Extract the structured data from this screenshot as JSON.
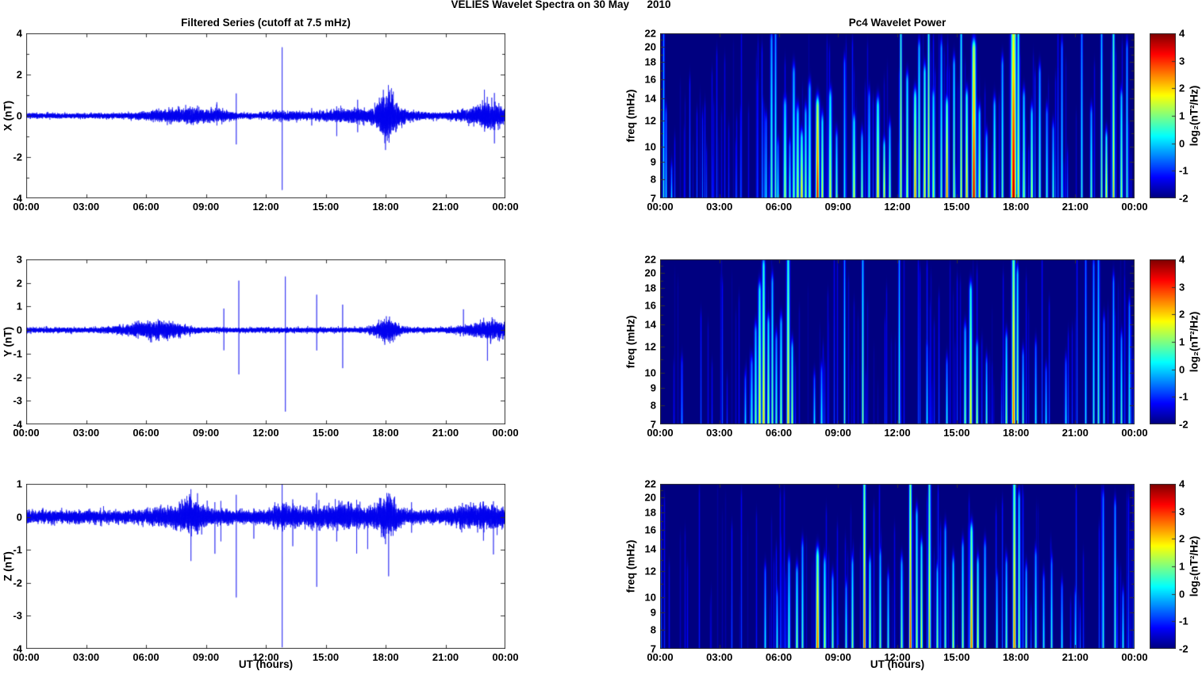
{
  "chart_data": {
    "type": "line+heatmap",
    "figure_title": "VELIES Wavelet Spectra on 30 May      2010",
    "left_title": "Filtered Series (cutoff at 7.5 mHz)",
    "right_title": "Pc4 Wavelet Power",
    "time_axis": {
      "label": "UT (hours)",
      "tick_hours": [
        0,
        3,
        6,
        9,
        12,
        15,
        18,
        21,
        24
      ],
      "tick_labels": [
        "00:00",
        "03:00",
        "06:00",
        "09:00",
        "12:00",
        "15:00",
        "18:00",
        "21:00",
        "00:00"
      ]
    },
    "series_color": "#0000ee",
    "axis_color": "#333333",
    "left_panels": [
      {
        "ylabel": "X (nT)",
        "ylim": [
          -4,
          4
        ],
        "ytick_values": [
          4,
          2,
          0,
          -2,
          -4
        ],
        "ytick_minor": [
          3,
          1,
          -1,
          -3
        ],
        "sigma": 0.055,
        "seed": 11,
        "bursts": [
          [
            7.5,
            1.3,
            1.6
          ],
          [
            8.3,
            0.4,
            1.2
          ],
          [
            9.7,
            0.5,
            1.2
          ],
          [
            13.0,
            0.8,
            0.8
          ],
          [
            15.6,
            1.0,
            1.0
          ],
          [
            16.6,
            0.7,
            1.4
          ],
          [
            18.08,
            0.38,
            7.5
          ],
          [
            18.9,
            0.8,
            1.2
          ],
          [
            22.7,
            0.9,
            2.0
          ],
          [
            23.35,
            0.45,
            3.0
          ]
        ],
        "spikes": [
          [
            9.55,
            0.55,
            0.5
          ],
          [
            10.52,
            1.15,
            1.3
          ],
          [
            12.82,
            3.4,
            3.55
          ],
          [
            14.3,
            0.5,
            0.45
          ],
          [
            15.55,
            0.45,
            1.0
          ],
          [
            16.6,
            0.7,
            0.8
          ],
          [
            22.55,
            0.6,
            0.55
          ],
          [
            22.95,
            1.45,
            0.4
          ],
          [
            23.45,
            1.3,
            1.25
          ]
        ]
      },
      {
        "ylabel": "Y (nT)",
        "ylim": [
          -4,
          3
        ],
        "ytick_values": [
          3,
          2,
          1,
          0,
          -1,
          -2,
          -3,
          -4
        ],
        "ytick_minor": [],
        "sigma": 0.05,
        "seed": 22,
        "bursts": [
          [
            5.8,
            0.9,
            1.6
          ],
          [
            7.0,
            0.7,
            1.8
          ],
          [
            18.05,
            0.4,
            3.5
          ],
          [
            22.8,
            0.8,
            1.5
          ],
          [
            23.5,
            0.4,
            2.0
          ]
        ],
        "spikes": [
          [
            9.9,
            0.85,
            0.85
          ],
          [
            10.65,
            2.1,
            1.85
          ],
          [
            12.98,
            2.25,
            3.5
          ],
          [
            14.55,
            1.5,
            0.9
          ],
          [
            15.85,
            1.05,
            1.6
          ],
          [
            21.9,
            0.9,
            0.35
          ],
          [
            23.1,
            0.4,
            1.3
          ]
        ]
      },
      {
        "ylabel": "Z (nT)",
        "ylim": [
          -4,
          1
        ],
        "ytick_values": [
          1,
          0,
          -1,
          -2,
          -3,
          -4
        ],
        "ytick_minor": [],
        "sigma": 0.085,
        "seed": 33,
        "bursts": [
          [
            7.9,
            1.1,
            0.8
          ],
          [
            8.3,
            0.4,
            1.0
          ],
          [
            12.9,
            0.5,
            0.9
          ],
          [
            14.6,
            0.8,
            0.7
          ],
          [
            16.3,
            0.7,
            0.9
          ],
          [
            18.1,
            0.4,
            2.2
          ],
          [
            21.9,
            0.6,
            0.7
          ],
          [
            23.2,
            0.6,
            1.0
          ]
        ],
        "spikes": [
          [
            8.25,
            0.5,
            0.95
          ],
          [
            9.45,
            0.35,
            0.8
          ],
          [
            9.75,
            0.4,
            0.75
          ],
          [
            10.52,
            0.75,
            2.4
          ],
          [
            11.4,
            0.3,
            0.7
          ],
          [
            12.82,
            0.8,
            3.8
          ],
          [
            13.35,
            0.4,
            0.8
          ],
          [
            14.55,
            0.45,
            1.85
          ],
          [
            15.55,
            0.3,
            0.9
          ],
          [
            16.55,
            0.4,
            1.15
          ],
          [
            17.1,
            0.3,
            0.9
          ],
          [
            18.15,
            0.9,
            1.6
          ],
          [
            19.3,
            0.3,
            0.65
          ],
          [
            22.9,
            0.65,
            0.7
          ],
          [
            23.4,
            0.4,
            0.8
          ]
        ]
      }
    ],
    "freq_axis": {
      "label": "freq (mHz)",
      "lim": [
        7,
        22
      ],
      "scale": "log",
      "tick_values": [
        22,
        20,
        18,
        16,
        14,
        12,
        10,
        9,
        8,
        7
      ],
      "minor": [
        11,
        13,
        15,
        17,
        19,
        21
      ]
    },
    "colorbar": {
      "label": "log₂(nT²/Hz)",
      "range": [
        -2,
        4
      ],
      "tick_values": [
        4,
        3,
        2,
        1,
        0,
        -1,
        -2
      ],
      "colormap": "jet"
    },
    "right_panels": [
      {
        "name": "X wavelet power",
        "seed": 101,
        "texture": {
          "count": 150,
          "vmin": -1.75,
          "vmax": -0.55
        },
        "streaks": [
          [
            0.15,
            1.0,
            0.6,
            0.8
          ],
          [
            0.3,
            0.5,
            0.3,
            0.8
          ],
          [
            0.55,
            0.15,
            0.2,
            0.8
          ],
          [
            5.35,
            0.45,
            0.2,
            1.0
          ],
          [
            5.6,
            0.95,
            0.9,
            1.1
          ],
          [
            5.8,
            1.0,
            0.8,
            0.9
          ],
          [
            5.95,
            0.3,
            0.4,
            1.0
          ],
          [
            6.3,
            0.55,
            1.3,
            1.4
          ],
          [
            6.55,
            0.3,
            0.6,
            1.0
          ],
          [
            6.75,
            0.75,
            1.0,
            1.2
          ],
          [
            6.95,
            0.5,
            1.6,
            1.2
          ],
          [
            7.15,
            0.35,
            2.1,
            1.3
          ],
          [
            7.35,
            0.5,
            1.2,
            1.1
          ],
          [
            7.55,
            0.65,
            1.0,
            1.3
          ],
          [
            7.95,
            0.55,
            3.6,
            1.5
          ],
          [
            8.2,
            0.45,
            1.8,
            1.1
          ],
          [
            8.6,
            0.6,
            1.6,
            1.4
          ],
          [
            8.9,
            0.35,
            1.0,
            1.0
          ],
          [
            9.3,
            0.8,
            0.4,
            0.9
          ],
          [
            9.8,
            0.45,
            1.7,
            1.2
          ],
          [
            10.2,
            0.35,
            1.2,
            1.0
          ],
          [
            10.55,
            0.6,
            0.6,
            1.0
          ],
          [
            11.0,
            0.55,
            2.0,
            1.4
          ],
          [
            11.3,
            0.3,
            2.1,
            1.0
          ],
          [
            11.6,
            0.4,
            1.1,
            1.0
          ],
          [
            12.15,
            1.0,
            2.2,
            0.9
          ],
          [
            12.5,
            0.7,
            1.5,
            1.1
          ],
          [
            12.9,
            0.6,
            2.5,
            1.3
          ],
          [
            13.1,
            0.9,
            1.3,
            1.0
          ],
          [
            13.35,
            0.75,
            2.0,
            1.1
          ],
          [
            13.55,
            1.0,
            2.2,
            0.9
          ],
          [
            13.8,
            0.6,
            1.5,
            1.1
          ],
          [
            14.2,
            0.9,
            0.9,
            1.0
          ],
          [
            14.5,
            0.55,
            2.8,
            1.2
          ],
          [
            14.85,
            0.8,
            1.3,
            1.0
          ],
          [
            15.2,
            1.0,
            1.8,
            0.9
          ],
          [
            15.5,
            0.6,
            2.2,
            1.2
          ],
          [
            15.85,
            0.9,
            3.7,
            1.7
          ],
          [
            16.15,
            0.5,
            1.6,
            1.1
          ],
          [
            16.5,
            0.35,
            1.0,
            1.0
          ],
          [
            16.9,
            0.55,
            1.3,
            1.1
          ],
          [
            17.3,
            0.8,
            0.9,
            1.0
          ],
          [
            17.85,
            1.0,
            3.9,
            2.2
          ],
          [
            18.1,
            1.0,
            2.0,
            1.0
          ],
          [
            18.4,
            0.6,
            1.3,
            1.1
          ],
          [
            18.8,
            0.5,
            1.6,
            1.1
          ],
          [
            19.2,
            0.75,
            0.9,
            1.0
          ],
          [
            19.55,
            0.5,
            0.6,
            1.0
          ],
          [
            19.85,
            0.4,
            0.7,
            1.0
          ],
          [
            20.3,
            0.9,
            0.45,
            0.9
          ],
          [
            21.3,
            1.0,
            0.6,
            0.9
          ],
          [
            21.8,
            0.5,
            0.9,
            1.0
          ],
          [
            22.3,
            1.0,
            1.1,
            0.9
          ],
          [
            22.55,
            0.35,
            2.0,
            1.0
          ],
          [
            22.9,
            1.0,
            2.2,
            1.0
          ],
          [
            23.3,
            0.6,
            1.3,
            1.1
          ],
          [
            23.6,
            0.9,
            0.7,
            0.9
          ]
        ]
      },
      {
        "name": "Y wavelet power",
        "seed": 202,
        "texture": {
          "count": 110,
          "vmin": -1.8,
          "vmax": -0.7
        },
        "streaks": [
          [
            1.1,
            0.35,
            -0.3,
            0.9
          ],
          [
            4.3,
            0.25,
            0.2,
            0.9
          ],
          [
            4.6,
            0.35,
            0.7,
            1.0
          ],
          [
            4.8,
            0.55,
            1.1,
            1.1
          ],
          [
            5.0,
            0.8,
            1.9,
            1.3
          ],
          [
            5.2,
            0.95,
            2.1,
            1.3
          ],
          [
            5.45,
            0.6,
            1.5,
            1.1
          ],
          [
            5.65,
            0.85,
            1.1,
            1.0
          ],
          [
            5.85,
            0.5,
            0.8,
            1.0
          ],
          [
            6.1,
            0.6,
            1.2,
            1.1
          ],
          [
            6.45,
            1.0,
            2.1,
            1.3
          ],
          [
            6.65,
            0.45,
            1.5,
            1.0
          ],
          [
            7.8,
            0.25,
            0.3,
            0.9
          ],
          [
            8.15,
            0.3,
            0.5,
            0.9
          ],
          [
            9.3,
            1.0,
            0.7,
            0.8
          ],
          [
            10.25,
            1.0,
            1.2,
            0.9
          ],
          [
            12.1,
            1.0,
            0.8,
            0.8
          ],
          [
            13.5,
            0.45,
            0.3,
            0.9
          ],
          [
            14.5,
            0.35,
            0.5,
            0.9
          ],
          [
            15.4,
            0.55,
            1.0,
            1.1
          ],
          [
            15.7,
            0.8,
            2.0,
            1.3
          ],
          [
            16.0,
            0.45,
            1.4,
            1.0
          ],
          [
            16.5,
            0.35,
            0.8,
            0.9
          ],
          [
            17.5,
            0.5,
            1.2,
            1.0
          ],
          [
            17.85,
            1.0,
            2.9,
            1.4
          ],
          [
            18.05,
            0.9,
            1.5,
            1.0
          ],
          [
            18.35,
            0.4,
            0.8,
            0.9
          ],
          [
            19.0,
            0.45,
            0.4,
            0.9
          ],
          [
            19.5,
            0.3,
            0.3,
            0.9
          ],
          [
            20.5,
            0.35,
            0.3,
            0.9
          ],
          [
            21.5,
            1.0,
            0.4,
            0.8
          ],
          [
            21.9,
            0.95,
            0.6,
            0.9
          ],
          [
            22.15,
            1.0,
            0.8,
            0.9
          ],
          [
            22.45,
            0.6,
            0.5,
            0.9
          ],
          [
            22.9,
            0.85,
            0.7,
            0.9
          ],
          [
            23.3,
            0.5,
            0.8,
            0.9
          ],
          [
            23.7,
            0.7,
            0.6,
            0.9
          ]
        ]
      },
      {
        "name": "Z wavelet power",
        "seed": 303,
        "texture": {
          "count": 120,
          "vmin": -1.8,
          "vmax": -0.65
        },
        "streaks": [
          [
            5.3,
            0.45,
            0.4,
            0.9
          ],
          [
            5.9,
            0.3,
            0.6,
            0.9
          ],
          [
            6.5,
            0.5,
            0.8,
            1.1
          ],
          [
            6.9,
            0.45,
            1.2,
            1.1
          ],
          [
            7.2,
            0.6,
            0.8,
            1.0
          ],
          [
            7.95,
            0.55,
            2.9,
            1.4
          ],
          [
            8.3,
            0.5,
            1.5,
            1.1
          ],
          [
            8.7,
            0.4,
            1.0,
            1.0
          ],
          [
            9.4,
            0.35,
            0.8,
            0.9
          ],
          [
            9.7,
            0.5,
            1.2,
            1.0
          ],
          [
            10.3,
            1.0,
            2.9,
            1.1
          ],
          [
            10.6,
            0.5,
            1.5,
            1.0
          ],
          [
            11.1,
            0.55,
            1.0,
            1.0
          ],
          [
            11.5,
            0.4,
            0.7,
            0.9
          ],
          [
            12.2,
            0.5,
            1.2,
            1.0
          ],
          [
            12.65,
            1.0,
            3.1,
            1.1
          ],
          [
            12.95,
            0.8,
            1.5,
            1.0
          ],
          [
            13.2,
            0.6,
            1.8,
            1.0
          ],
          [
            13.6,
            1.0,
            2.4,
            1.0
          ],
          [
            14.0,
            0.45,
            1.2,
            1.0
          ],
          [
            14.4,
            0.7,
            0.9,
            1.0
          ],
          [
            14.8,
            0.5,
            1.5,
            1.0
          ],
          [
            15.3,
            0.6,
            1.2,
            1.0
          ],
          [
            15.75,
            0.7,
            2.7,
            1.3
          ],
          [
            16.05,
            0.5,
            1.8,
            1.0
          ],
          [
            16.4,
            0.6,
            0.9,
            1.0
          ],
          [
            17.0,
            0.4,
            0.6,
            0.9
          ],
          [
            17.5,
            0.5,
            0.9,
            1.0
          ],
          [
            17.9,
            1.0,
            2.7,
            1.3
          ],
          [
            18.15,
            0.9,
            1.4,
            1.0
          ],
          [
            18.5,
            0.45,
            1.0,
            0.9
          ],
          [
            19.0,
            0.55,
            0.8,
            1.0
          ],
          [
            19.4,
            0.4,
            0.5,
            0.9
          ],
          [
            19.8,
            0.5,
            0.7,
            0.9
          ],
          [
            20.3,
            0.35,
            0.4,
            0.9
          ],
          [
            21.0,
            0.3,
            0.3,
            0.9
          ],
          [
            22.4,
            0.9,
            0.6,
            0.9
          ],
          [
            23.0,
            0.85,
            0.8,
            0.9
          ],
          [
            23.4,
            0.3,
            0.5,
            0.9
          ]
        ]
      }
    ]
  }
}
